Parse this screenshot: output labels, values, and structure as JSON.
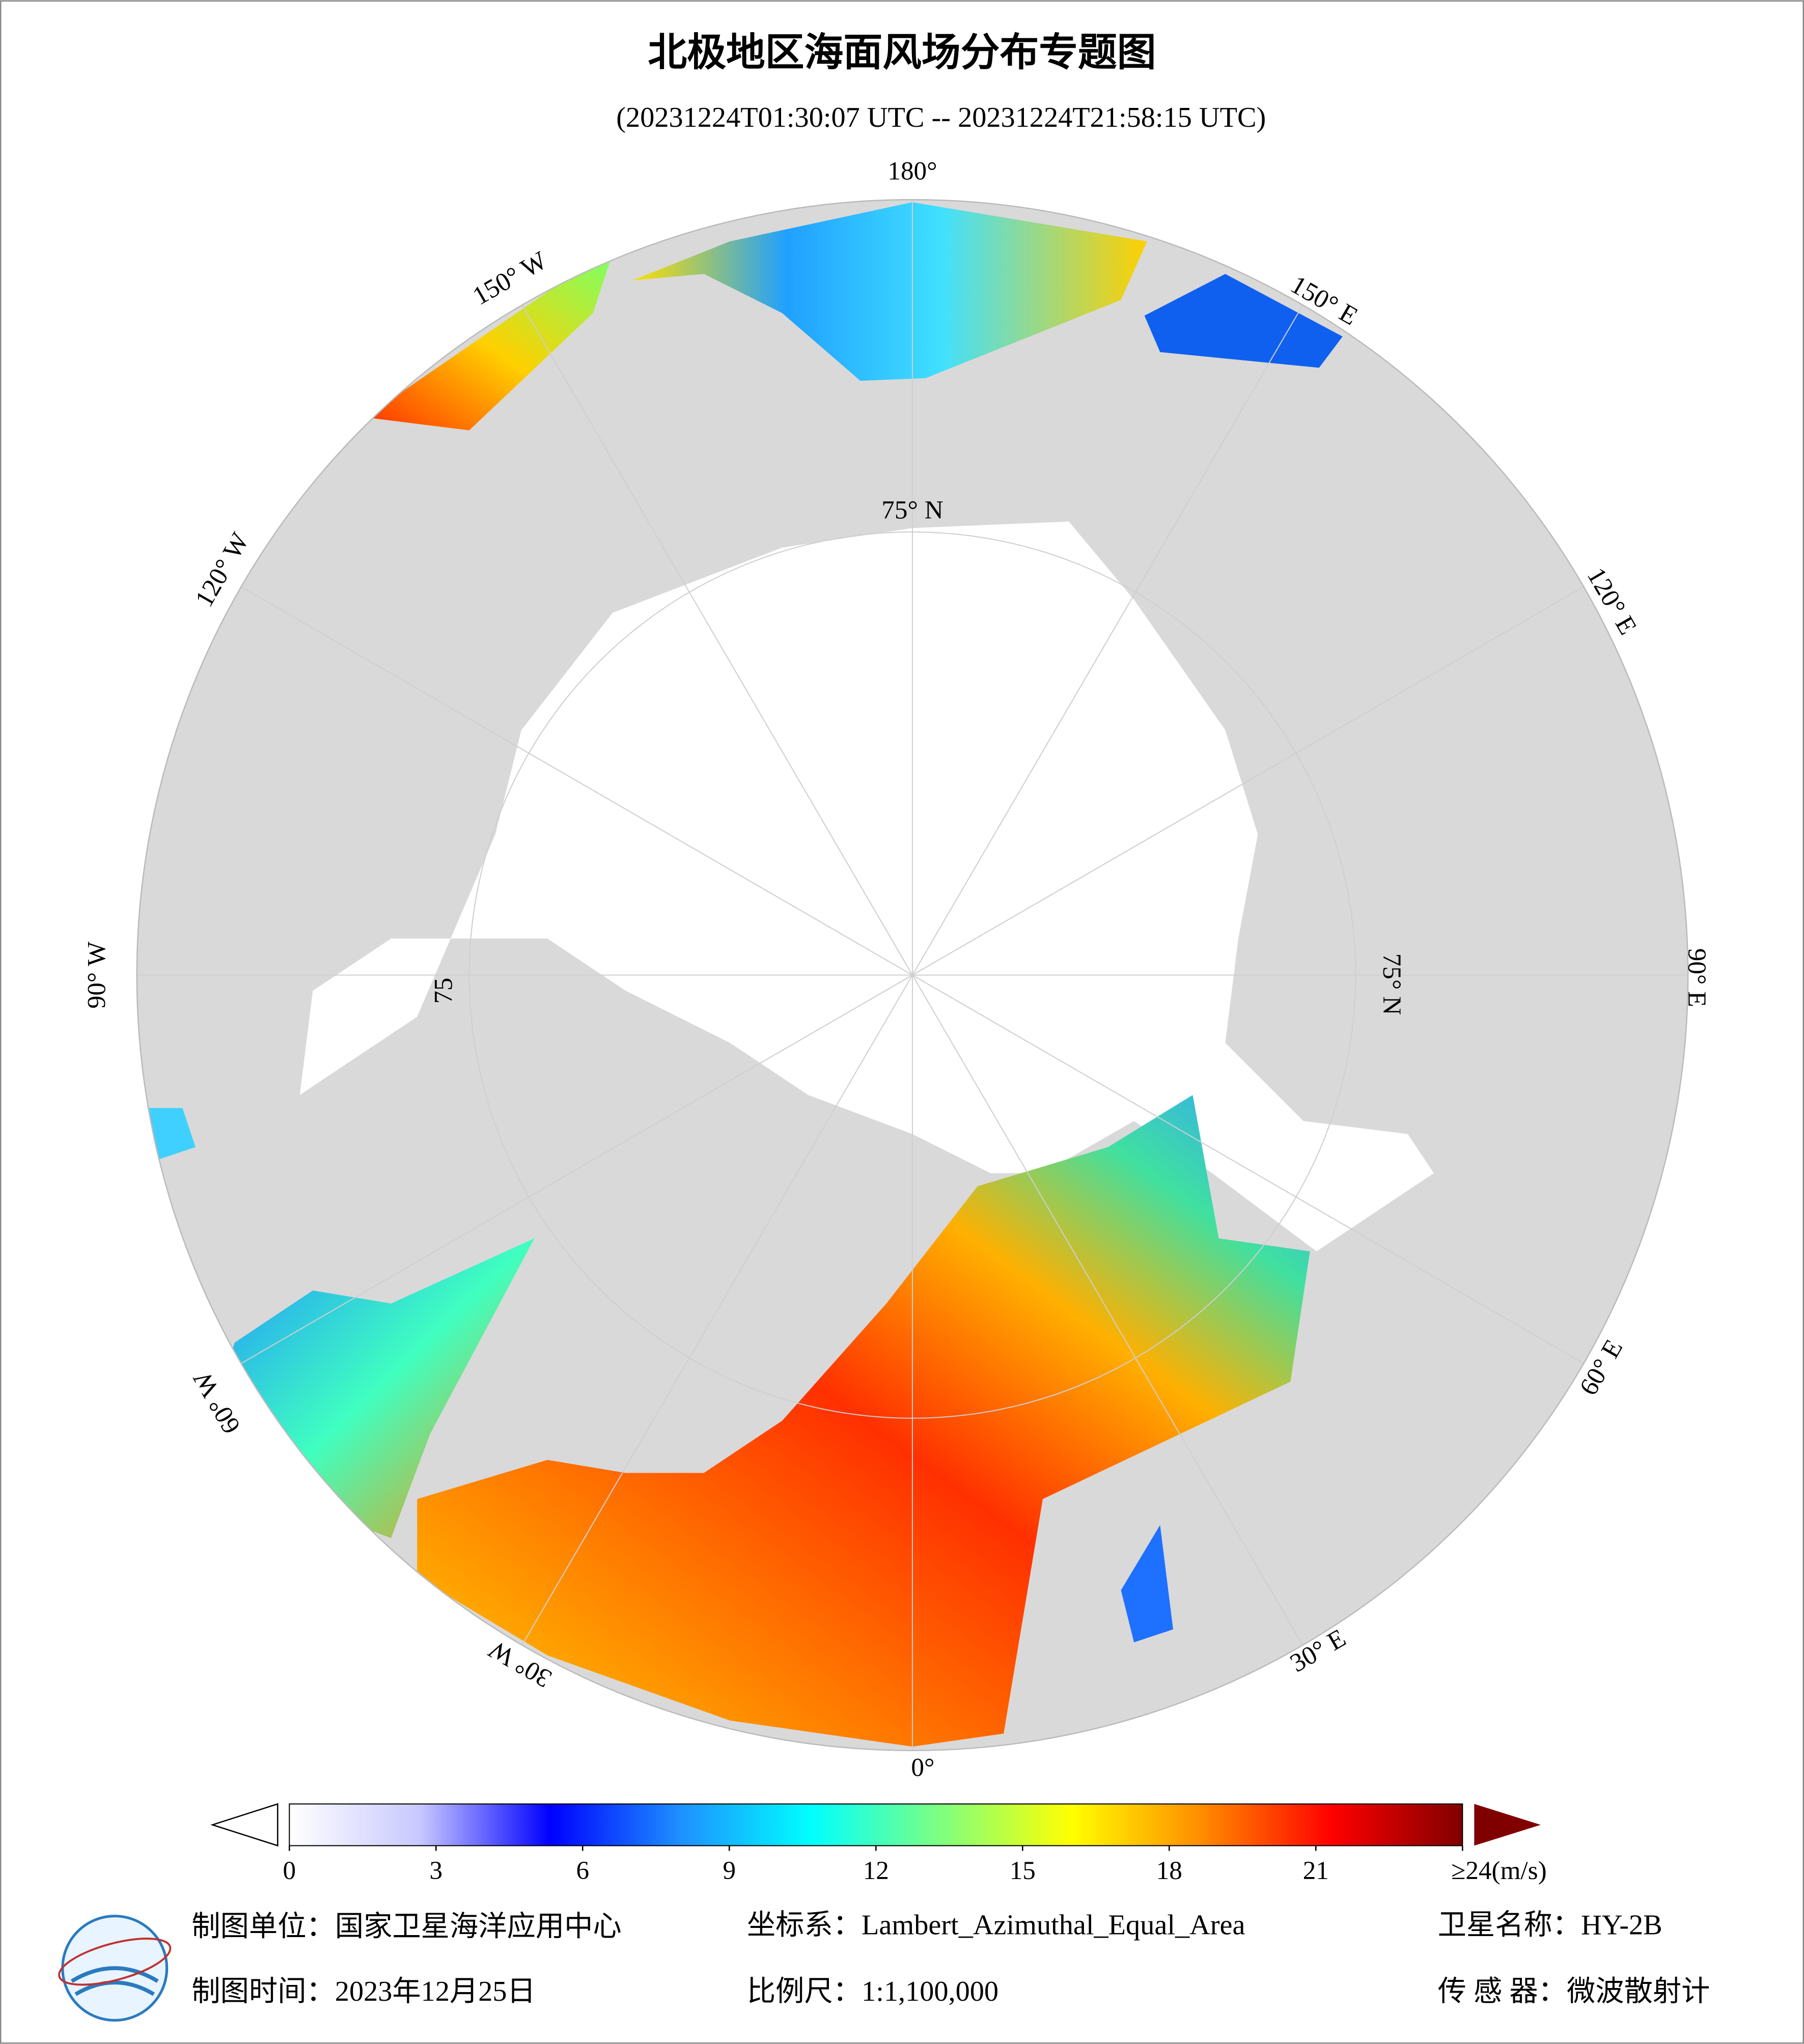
{
  "title": "北极地区海面风场分布专题图",
  "subtitle": "(20231224T01:30:07 UTC -- 20231224T21:58:15 UTC)",
  "map": {
    "longitude_labels": [
      "180°",
      "150° E",
      "120° E",
      "90° E",
      "60° E",
      "30° E",
      "0°",
      "30° W",
      "60° W",
      "90° W",
      "120° W",
      "150° W"
    ],
    "latitude_labels": [
      "75° N",
      "75° N",
      "75"
    ]
  },
  "colorbar": {
    "lim": [
      0,
      24
    ],
    "ticks": [
      0,
      3,
      6,
      9,
      12,
      15,
      18,
      21,
      {
        "value": 24,
        "label": "≥24(m/s)"
      }
    ],
    "colors": [
      "#ffffff",
      "#c8c8ff",
      "#0000ff",
      "#1e90ff",
      "#00ffff",
      "#7fff7f",
      "#ffff00",
      "#ff8c00",
      "#ff0000",
      "#800000"
    ]
  },
  "footer": {
    "unit": "制图单位：国家卫星海洋应用中心",
    "projection": "坐标系：Lambert_Azimuthal_Equal_Area",
    "satellite": "卫星名称：HY-2B",
    "date": "制图时间：2023年12月25日",
    "scale": "比例尺：1:1,100,000",
    "sensor": "传 感 器：微波散射计"
  }
}
